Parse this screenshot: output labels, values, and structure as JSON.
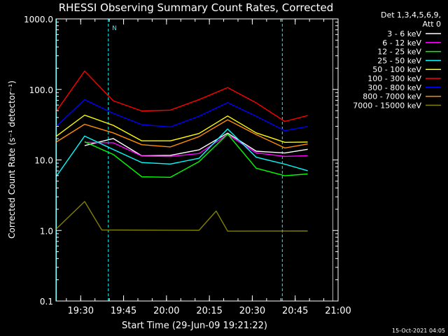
{
  "chart_data": {
    "type": "line",
    "title": "RHESSI Observing Summary Count Rates, Corrected",
    "xlabel": "Start Time (29-Jun-09 19:21:22)",
    "ylabel": "Corrected Count Rate (s⁻¹ detector⁻¹)",
    "y_scale": "log",
    "ylim": [
      0.1,
      1000
    ],
    "xlim": [
      "19:21:22",
      "21:00:00"
    ],
    "x_ticks": [
      "19:30",
      "19:45",
      "20:00",
      "20:15",
      "20:30",
      "20:45",
      "21:00"
    ],
    "y_ticks": [
      "0.1",
      "1.0",
      "10.0",
      "100.0",
      "1000.0"
    ],
    "legend_header": [
      "Det 1,3,4,5,6,9,",
      "Att 0"
    ],
    "legend_position": "right-top",
    "timestamp": "15-Oct-2021 04:05",
    "annotations": [
      {
        "text": "N",
        "x": "19:40:00"
      }
    ],
    "vertical_lines": [
      "19:21:30",
      "19:39:40",
      "20:40:30",
      "20:58:10"
    ],
    "series": [
      {
        "name": "3 - 6 keV",
        "color": "#ffffff",
        "values": [
          [
            0,
            0
          ],
          [
            10,
            16
          ],
          [
            20,
            20
          ],
          [
            30,
            12
          ],
          [
            40,
            12
          ],
          [
            50,
            14
          ],
          [
            60,
            24
          ],
          [
            70,
            14
          ],
          [
            80,
            12
          ],
          [
            88,
            14
          ]
        ]
      },
      {
        "name": "6 - 12 keV",
        "color": "#ff00ff",
        "values": [
          [
            0,
            0
          ],
          [
            10,
            18
          ],
          [
            20,
            18
          ],
          [
            30,
            11
          ],
          [
            40,
            11
          ],
          [
            50,
            13
          ],
          [
            60,
            23
          ],
          [
            70,
            13
          ],
          [
            80,
            11
          ],
          [
            88,
            12
          ]
        ]
      },
      {
        "name": "12 - 25 keV",
        "color": "#00ff00",
        "values": [
          [
            0,
            0
          ],
          [
            10,
            18
          ],
          [
            20,
            12
          ],
          [
            30,
            6
          ],
          [
            40,
            6
          ],
          [
            50,
            9
          ],
          [
            60,
            22
          ],
          [
            70,
            8
          ],
          [
            80,
            6
          ],
          [
            88,
            6
          ]
        ]
      },
      {
        "name": "25 - 50 keV",
        "color": "#00ffff",
        "values": [
          [
            0,
            6
          ],
          [
            10,
            22
          ],
          [
            20,
            14
          ],
          [
            30,
            9
          ],
          [
            40,
            9
          ],
          [
            50,
            11
          ],
          [
            60,
            26
          ],
          [
            70,
            11
          ],
          [
            80,
            9
          ],
          [
            88,
            7
          ]
        ]
      },
      {
        "name": "50 - 100 keV",
        "color": "#ffff00",
        "values": [
          [
            0,
            22
          ],
          [
            10,
            45
          ],
          [
            20,
            30
          ],
          [
            30,
            19
          ],
          [
            40,
            19
          ],
          [
            50,
            25
          ],
          [
            60,
            40
          ],
          [
            70,
            25
          ],
          [
            80,
            17
          ],
          [
            88,
            18
          ]
        ]
      },
      {
        "name": "100 - 300 keV",
        "color": "#ff0000",
        "values": [
          [
            0,
            50
          ],
          [
            10,
            180
          ],
          [
            20,
            70
          ],
          [
            30,
            48
          ],
          [
            40,
            50
          ],
          [
            50,
            75
          ],
          [
            60,
            110
          ],
          [
            70,
            65
          ],
          [
            80,
            37
          ],
          [
            88,
            45
          ]
        ]
      },
      {
        "name": "300 - 800 keV",
        "color": "#0000ff",
        "values": [
          [
            0,
            30
          ],
          [
            10,
            70
          ],
          [
            20,
            45
          ],
          [
            30,
            30
          ],
          [
            40,
            30
          ],
          [
            50,
            42
          ],
          [
            60,
            65
          ],
          [
            70,
            42
          ],
          [
            80,
            25
          ],
          [
            88,
            30
          ]
        ]
      },
      {
        "name": "800 - 7000 keV",
        "color": "#ff8c00",
        "values": [
          [
            0,
            18
          ],
          [
            10,
            33
          ],
          [
            20,
            25
          ],
          [
            30,
            16
          ],
          [
            40,
            16
          ],
          [
            50,
            22
          ],
          [
            60,
            36
          ],
          [
            70,
            22
          ],
          [
            80,
            14
          ],
          [
            88,
            16
          ]
        ]
      },
      {
        "name": "7000 - 15000 keV",
        "color": "#808000",
        "values": [
          [
            0,
            1
          ],
          [
            10,
            2.5
          ],
          [
            16,
            1
          ],
          [
            50,
            1
          ],
          [
            56,
            2
          ],
          [
            60,
            1
          ],
          [
            88,
            1
          ]
        ]
      }
    ]
  }
}
